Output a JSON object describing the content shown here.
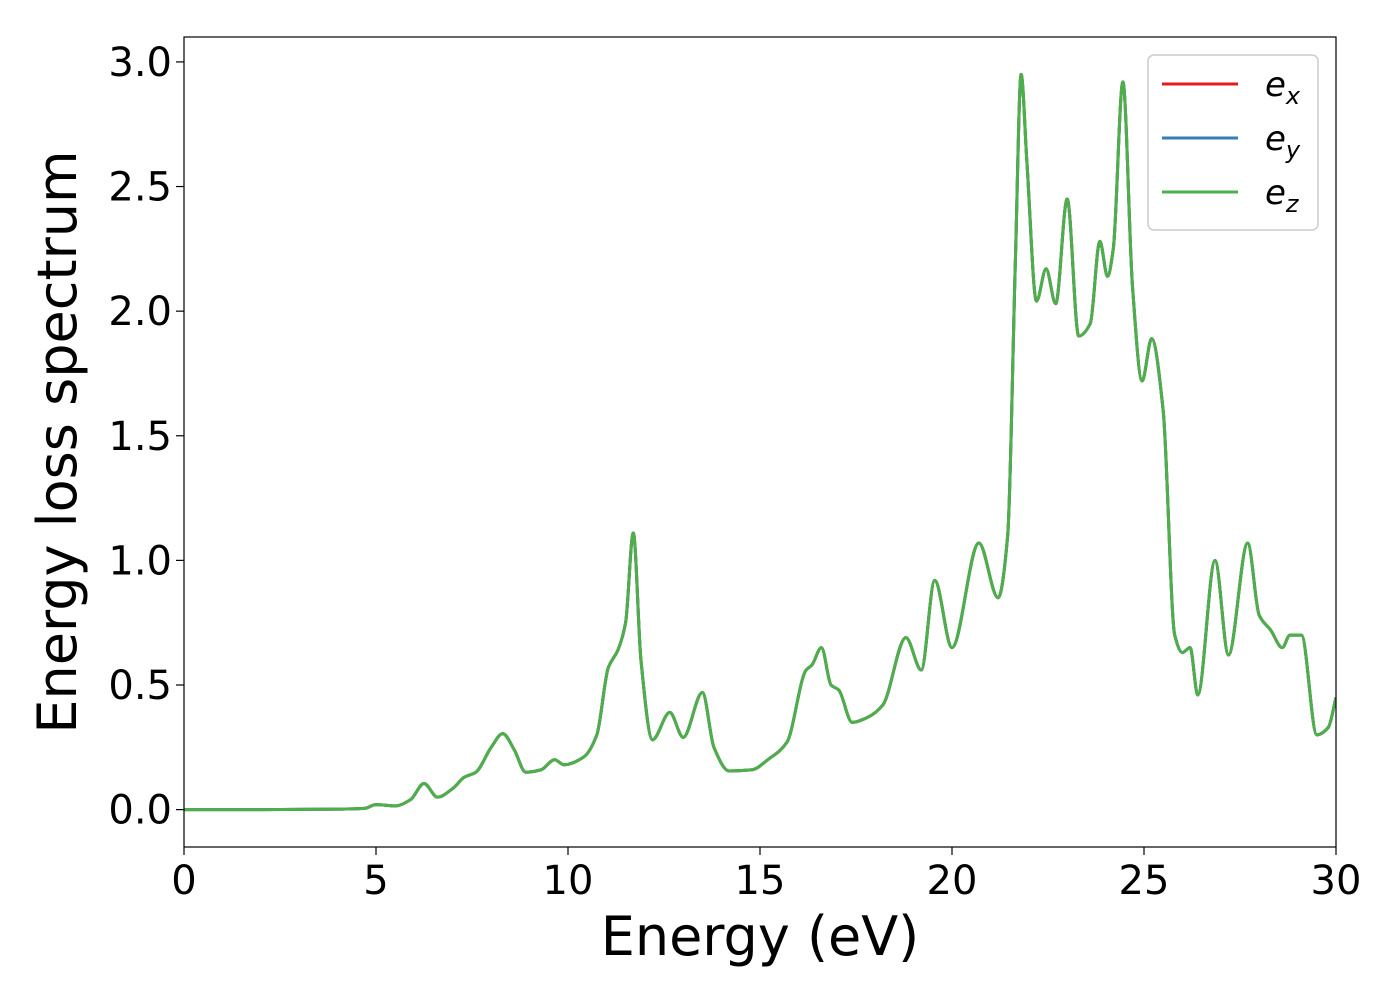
{
  "chart_data": {
    "type": "line",
    "title": "",
    "xlabel": "Energy (eV)",
    "ylabel": "Energy loss spectrum",
    "xlim": [
      0,
      30
    ],
    "ylim": [
      -0.15,
      3.1
    ],
    "xticks": [
      0,
      5,
      10,
      15,
      20,
      25,
      30
    ],
    "xtick_labels": [
      "0",
      "5",
      "10",
      "15",
      "20",
      "25",
      "30"
    ],
    "yticks": [
      0.0,
      0.5,
      1.0,
      1.5,
      2.0,
      2.5,
      3.0
    ],
    "ytick_labels": [
      "0.0",
      "0.5",
      "1.0",
      "1.5",
      "2.0",
      "2.5",
      "3.0"
    ],
    "grid": false,
    "legend_position": "top-right",
    "colors": {
      "e_x": "#e41a1c",
      "e_y": "#377eb8",
      "e_z": "#4daf4a"
    },
    "x": [
      0,
      2,
      4,
      4.7,
      5.0,
      5.5,
      5.9,
      6.25,
      6.6,
      7.0,
      7.3,
      7.6,
      8.0,
      8.3,
      8.6,
      8.9,
      9.3,
      9.65,
      9.9,
      10.4,
      10.75,
      11.05,
      11.3,
      11.5,
      11.7,
      11.9,
      12.2,
      12.65,
      13.0,
      13.5,
      13.8,
      14.2,
      14.8,
      15.2,
      15.7,
      16.2,
      16.35,
      16.6,
      16.85,
      17.05,
      17.4,
      17.8,
      18.2,
      18.8,
      19.2,
      19.55,
      20.0,
      20.7,
      21.2,
      21.45,
      21.65,
      21.8,
      21.95,
      22.2,
      22.45,
      22.7,
      23.0,
      23.3,
      23.6,
      23.85,
      24.05,
      24.2,
      24.45,
      24.7,
      24.95,
      25.2,
      25.5,
      25.8,
      26.0,
      26.2,
      26.4,
      26.85,
      27.2,
      27.7,
      28.0,
      28.3,
      28.6,
      28.8,
      29.1,
      29.5,
      29.8,
      30.0
    ],
    "series": [
      {
        "name": "e_x",
        "values": [
          0,
          0,
          0.002,
          0.005,
          0.02,
          0.015,
          0.04,
          0.105,
          0.05,
          0.085,
          0.13,
          0.15,
          0.25,
          0.305,
          0.24,
          0.15,
          0.16,
          0.2,
          0.18,
          0.21,
          0.3,
          0.57,
          0.64,
          0.75,
          1.11,
          0.6,
          0.28,
          0.39,
          0.29,
          0.47,
          0.25,
          0.155,
          0.16,
          0.2,
          0.27,
          0.56,
          0.58,
          0.65,
          0.5,
          0.48,
          0.35,
          0.37,
          0.42,
          0.69,
          0.56,
          0.92,
          0.65,
          1.07,
          0.85,
          1.1,
          2.2,
          2.95,
          2.6,
          2.04,
          2.17,
          2.03,
          2.45,
          1.9,
          1.95,
          2.28,
          2.14,
          2.25,
          2.92,
          2.1,
          1.72,
          1.89,
          1.6,
          0.7,
          0.63,
          0.65,
          0.46,
          1.0,
          0.62,
          1.07,
          0.78,
          0.72,
          0.65,
          0.7,
          0.7,
          0.3,
          0.33,
          0.45
        ]
      },
      {
        "name": "e_y",
        "values": [
          0,
          0,
          0.002,
          0.005,
          0.02,
          0.015,
          0.04,
          0.105,
          0.05,
          0.085,
          0.13,
          0.15,
          0.25,
          0.305,
          0.24,
          0.15,
          0.16,
          0.2,
          0.18,
          0.21,
          0.3,
          0.57,
          0.64,
          0.75,
          1.11,
          0.6,
          0.28,
          0.39,
          0.29,
          0.47,
          0.25,
          0.155,
          0.16,
          0.2,
          0.27,
          0.56,
          0.58,
          0.65,
          0.5,
          0.48,
          0.35,
          0.37,
          0.42,
          0.69,
          0.56,
          0.92,
          0.65,
          1.07,
          0.85,
          1.1,
          2.2,
          2.95,
          2.6,
          2.04,
          2.17,
          2.03,
          2.45,
          1.9,
          1.95,
          2.28,
          2.14,
          2.25,
          2.92,
          2.1,
          1.72,
          1.89,
          1.6,
          0.7,
          0.63,
          0.65,
          0.46,
          1.0,
          0.62,
          1.07,
          0.78,
          0.72,
          0.65,
          0.7,
          0.7,
          0.3,
          0.33,
          0.45
        ]
      },
      {
        "name": "e_z",
        "values": [
          0,
          0,
          0.002,
          0.005,
          0.02,
          0.015,
          0.04,
          0.105,
          0.05,
          0.085,
          0.13,
          0.15,
          0.25,
          0.305,
          0.24,
          0.15,
          0.16,
          0.2,
          0.18,
          0.21,
          0.3,
          0.57,
          0.64,
          0.75,
          1.11,
          0.6,
          0.28,
          0.39,
          0.29,
          0.47,
          0.25,
          0.155,
          0.16,
          0.2,
          0.27,
          0.56,
          0.58,
          0.65,
          0.5,
          0.48,
          0.35,
          0.37,
          0.42,
          0.69,
          0.56,
          0.92,
          0.65,
          1.07,
          0.85,
          1.1,
          2.2,
          2.95,
          2.6,
          2.04,
          2.17,
          2.03,
          2.45,
          1.9,
          1.95,
          2.28,
          2.14,
          2.25,
          2.92,
          2.1,
          1.72,
          1.89,
          1.6,
          0.7,
          0.63,
          0.65,
          0.46,
          1.0,
          0.62,
          1.07,
          0.78,
          0.72,
          0.65,
          0.7,
          0.7,
          0.3,
          0.33,
          0.45
        ]
      }
    ],
    "legend": [
      {
        "base": "e",
        "sub": "x",
        "series": "e_x"
      },
      {
        "base": "e",
        "sub": "y",
        "series": "e_y"
      },
      {
        "base": "e",
        "sub": "z",
        "series": "e_z"
      }
    ]
  }
}
